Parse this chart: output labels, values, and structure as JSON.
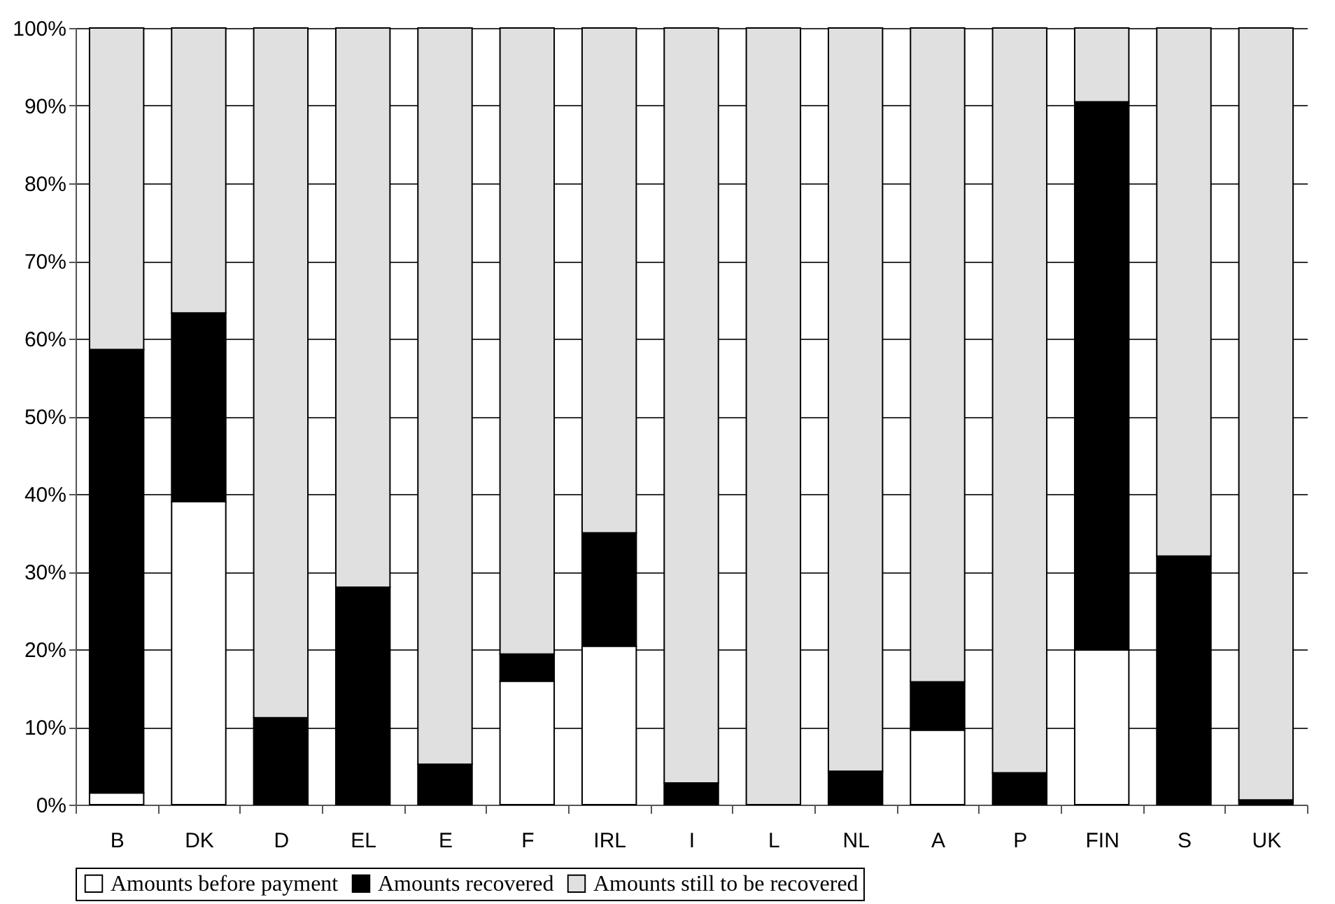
{
  "chart_data": {
    "type": "bar",
    "stacked": true,
    "categories": [
      "B",
      "DK",
      "D",
      "EL",
      "E",
      "F",
      "IRL",
      "I",
      "L",
      "NL",
      "A",
      "P",
      "FIN",
      "S",
      "UK"
    ],
    "series": [
      {
        "name": "Amounts before payment",
        "color": "#ffffff",
        "values": [
          1.5,
          39,
          0,
          0,
          0,
          15.9,
          20.4,
          0,
          0,
          0,
          9.6,
          0,
          19.9,
          0,
          0
        ]
      },
      {
        "name": "Amounts recovered",
        "color": "#000000",
        "values": [
          57.1,
          24.3,
          11.2,
          28,
          5.2,
          3.5,
          14.6,
          2.8,
          0,
          4.3,
          6.2,
          4.1,
          70.6,
          32,
          0.6
        ]
      },
      {
        "name": "Amounts still to be recovered",
        "color": "#e0e0e0",
        "values": [
          41.4,
          36.7,
          88.8,
          72,
          94.8,
          80.6,
          65,
          97.2,
          100,
          95.7,
          84.2,
          95.9,
          9.5,
          68,
          99.4
        ]
      }
    ],
    "ylim": [
      0,
      100
    ],
    "yticks": [
      {
        "value": 0,
        "label": "0%"
      },
      {
        "value": 10,
        "label": "10%"
      },
      {
        "value": 20,
        "label": "20%"
      },
      {
        "value": 30,
        "label": "30%"
      },
      {
        "value": 40,
        "label": "40%"
      },
      {
        "value": 50,
        "label": "50%"
      },
      {
        "value": 60,
        "label": "60%"
      },
      {
        "value": 70,
        "label": "70%"
      },
      {
        "value": 80,
        "label": "80%"
      },
      {
        "value": 90,
        "label": "90%"
      },
      {
        "value": 100,
        "label": "100%"
      }
    ],
    "grid": "y",
    "legend": "bottom"
  }
}
